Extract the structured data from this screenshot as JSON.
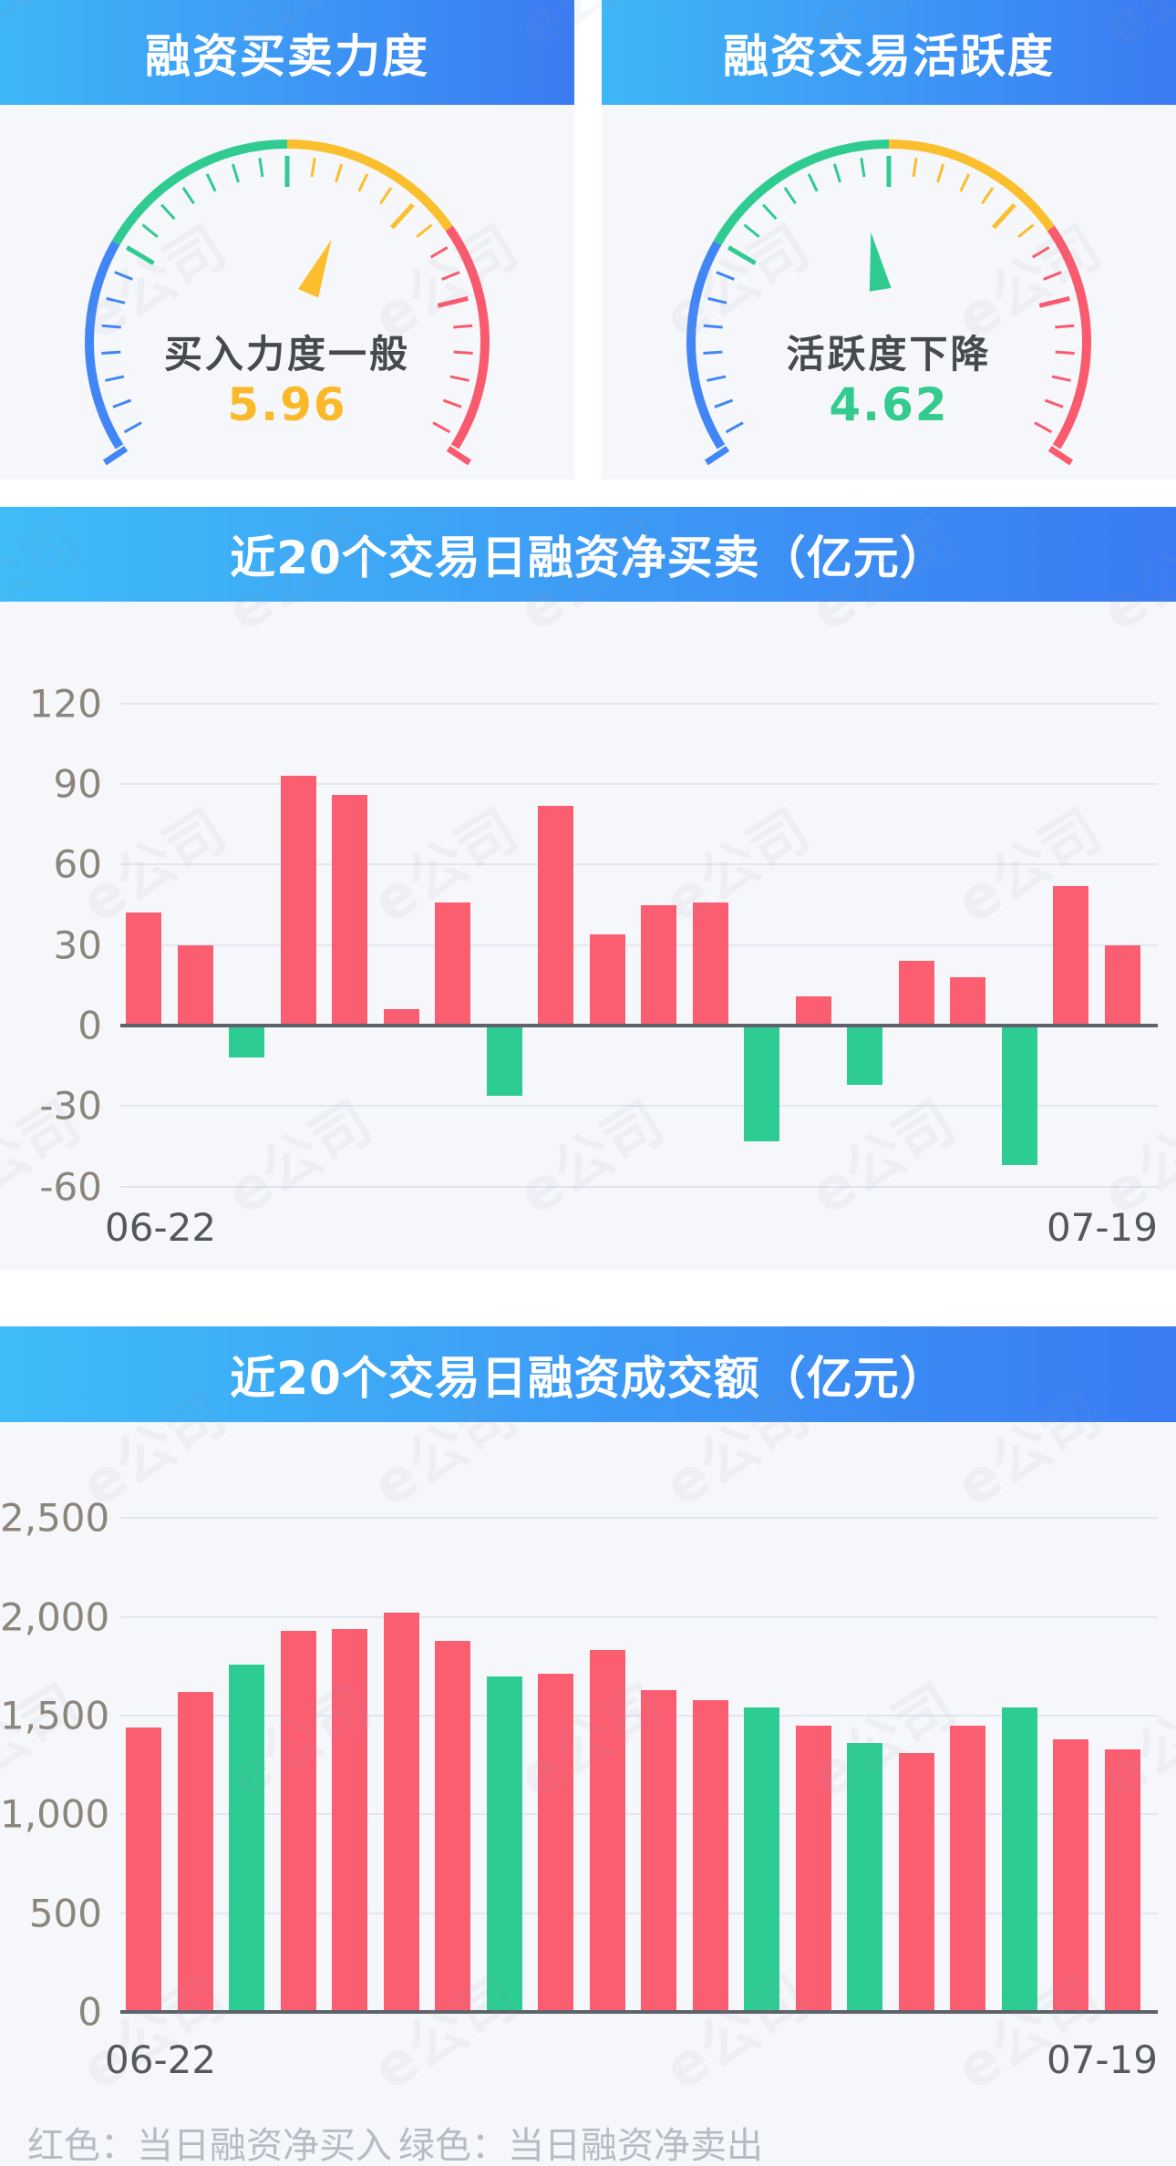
{
  "gauges": [
    {
      "title": "融资买卖力度",
      "status_label": "买入力度一般",
      "value_text": "5.96",
      "value": 5.96,
      "value_color": "#FBB929",
      "pointer_color": "#FBBE2C"
    },
    {
      "title": "融资交易活跃度",
      "status_label": "活跃度下降",
      "value_text": "4.62",
      "value": 4.62,
      "value_color": "#34CB8F",
      "pointer_color": "#30CB90"
    }
  ],
  "gauge_palette": {
    "blue": "#4286F5",
    "green": "#2FCB90",
    "yellow": "#FBBE2C",
    "red": "#FA5A6E"
  },
  "chart_data": [
    {
      "type": "bar",
      "title": "近20个交易日融资净买卖（亿元）",
      "ylabel": "亿元",
      "ylim": [
        -60,
        120
      ],
      "ytick_labels": [
        "120",
        "90",
        "60",
        "30",
        "0",
        "-30",
        "-60"
      ],
      "ytick_values": [
        120,
        90,
        60,
        30,
        0,
        -30,
        -60
      ],
      "x_first": "06-22",
      "x_last": "07-19",
      "grid": true,
      "values": [
        42,
        30,
        -12,
        93,
        86,
        6,
        46,
        -26,
        82,
        34,
        45,
        46,
        -43,
        11,
        -22,
        24,
        18,
        -52,
        52,
        30
      ],
      "colors": [
        "red",
        "red",
        "green",
        "red",
        "red",
        "red",
        "red",
        "green",
        "red",
        "red",
        "red",
        "red",
        "green",
        "red",
        "green",
        "red",
        "red",
        "green",
        "red",
        "red"
      ],
      "positive_color": "#FB5D71",
      "negative_color": "#2CCC92"
    },
    {
      "type": "bar",
      "title": "近20个交易日融资成交额（亿元）",
      "ylabel": "亿元",
      "ylim": [
        0,
        2500
      ],
      "ytick_labels": [
        "2,500",
        "2,000",
        "1,500",
        "1,000",
        "500",
        "0"
      ],
      "ytick_values": [
        2500,
        2000,
        1500,
        1000,
        500,
        0
      ],
      "x_first": "06-22",
      "x_last": "07-19",
      "grid": true,
      "values": [
        1440,
        1620,
        1760,
        1930,
        1940,
        2020,
        1880,
        1700,
        1710,
        1830,
        1630,
        1580,
        1540,
        1450,
        1360,
        1310,
        1450,
        1540,
        1380,
        1330
      ],
      "colors": [
        "red",
        "red",
        "green",
        "red",
        "red",
        "red",
        "red",
        "green",
        "red",
        "red",
        "red",
        "red",
        "green",
        "red",
        "green",
        "red",
        "red",
        "green",
        "red",
        "red"
      ],
      "positive_color": "#FB5D71",
      "negative_color": "#2CCC92"
    }
  ],
  "footer": {
    "red_label": "红色：当日融资净买入",
    "green_label": "绿色：当日融资净卖出"
  },
  "watermark_text": "e公司"
}
